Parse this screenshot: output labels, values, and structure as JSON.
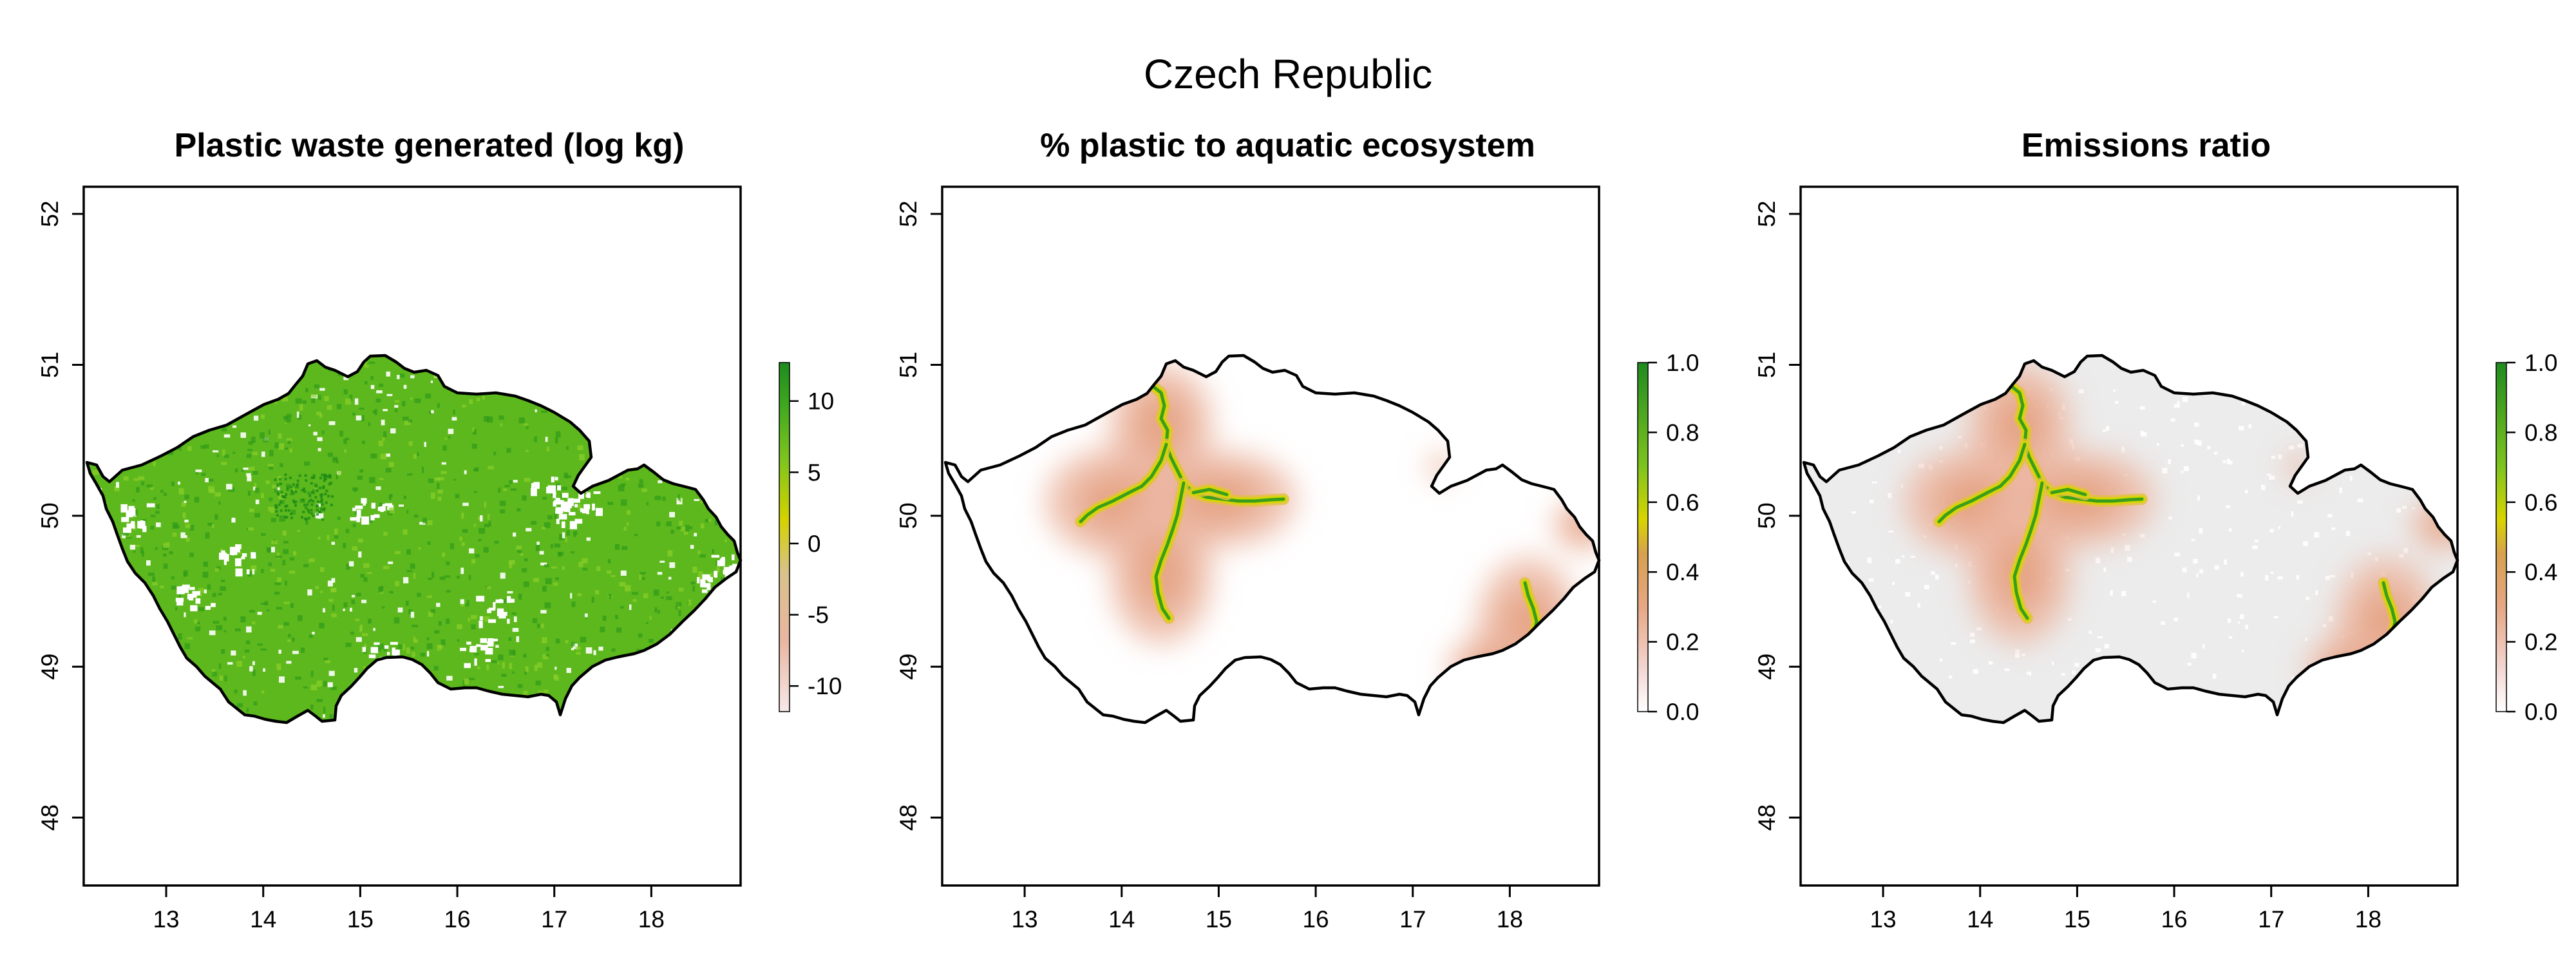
{
  "title": "Czech Republic",
  "colors": {
    "outline": "#000000",
    "green_dark": "#1f8a1f",
    "green": "#4fb31f",
    "yellow": "#d6d400",
    "salmon": "#e3a07a",
    "pink_light": "#f6dede",
    "grey_bg": "#ececec"
  },
  "panels": [
    {
      "title": "Plastic waste generated (log kg)",
      "legend_ticks": [
        "10",
        "5",
        "0",
        "-5",
        "-10"
      ],
      "legend_type": "green-yellow-pink",
      "fill": "green-noise"
    },
    {
      "title": "% plastic to aquatic ecosystem",
      "legend_ticks": [
        "1.0",
        "0.8",
        "0.6",
        "0.4",
        "0.2",
        "0.0"
      ],
      "legend_type": "green-yellow-salmon-white",
      "fill": "river-white"
    },
    {
      "title": "Emissions ratio",
      "legend_ticks": [
        "1.0",
        "0.8",
        "0.6",
        "0.4",
        "0.2",
        "0.0"
      ],
      "legend_type": "green-yellow-salmon-white",
      "fill": "river-grey"
    }
  ],
  "axes": {
    "x_ticks": [
      "13",
      "14",
      "15",
      "16",
      "17",
      "18"
    ],
    "y_ticks": [
      "52",
      "51",
      "50",
      "49",
      "48"
    ]
  }
}
